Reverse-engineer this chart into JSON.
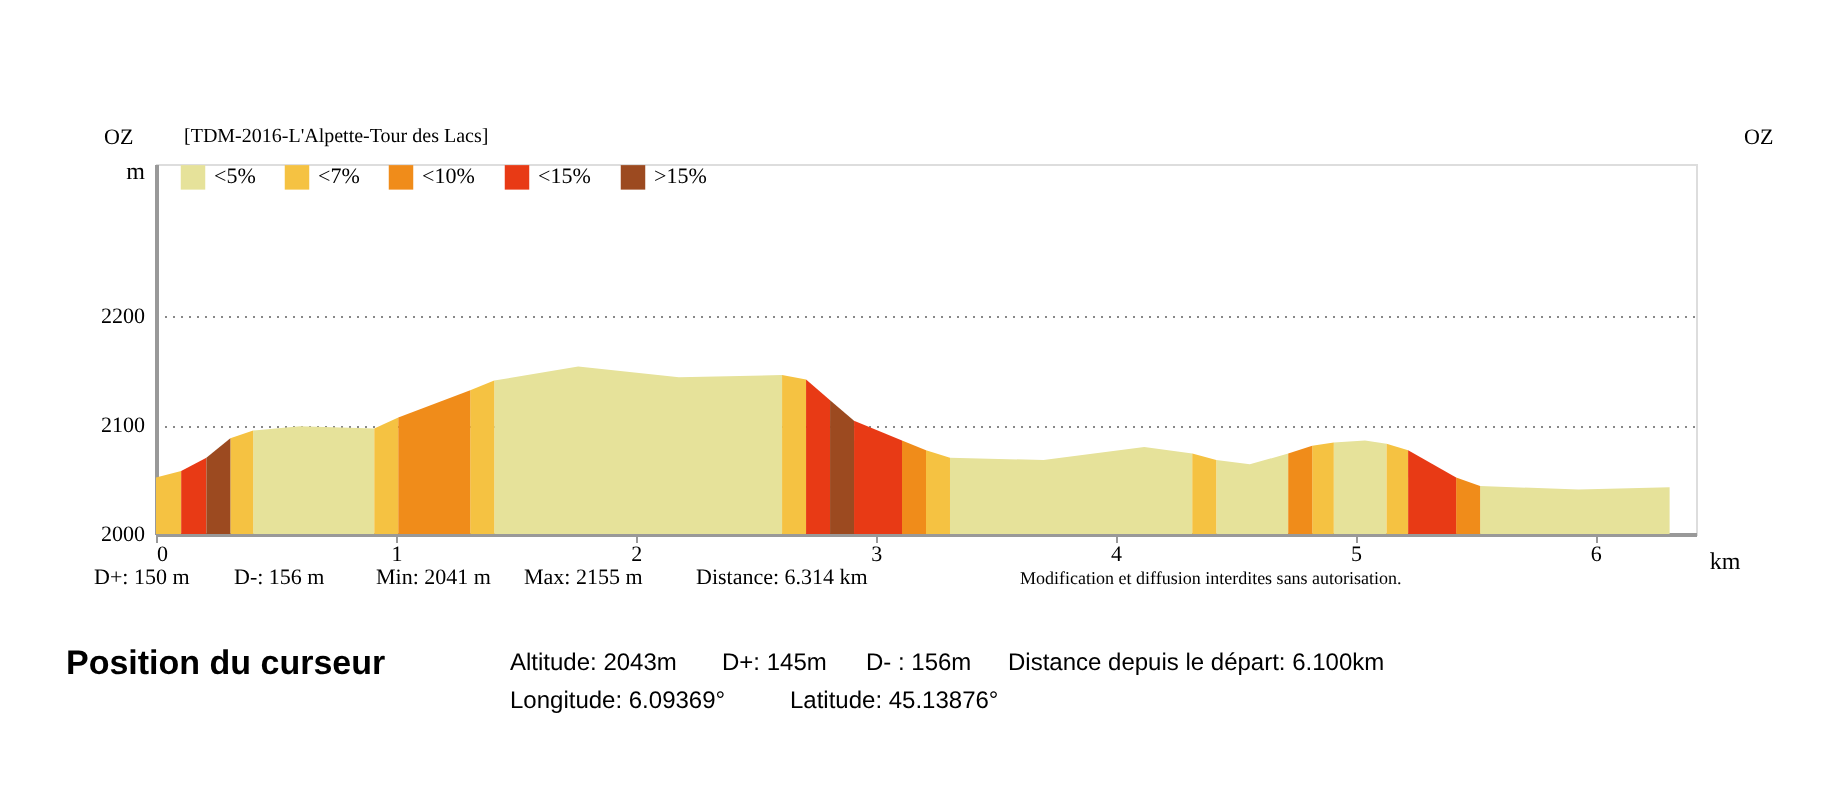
{
  "chart_data": {
    "type": "area",
    "title": "[TDM-2016-L'Alpette-Tour des Lacs]",
    "xlabel": "km",
    "ylabel": "m",
    "xlim": [
      0,
      6.42
    ],
    "ylim": [
      2000,
      2340
    ],
    "xticks": [
      0,
      1,
      2,
      3,
      4,
      5,
      6
    ],
    "yticks": [
      2000,
      2100,
      2200
    ],
    "grid": "y",
    "legend": "top left",
    "series": [
      {
        "name": "<5%",
        "color": "#e6e29a",
        "x": [
          0.405,
          0.6,
          0.91,
          1.2,
          1.41,
          1.76,
          2.18,
          2.61,
          2.65,
          3.31,
          3.7,
          4.12,
          4.32,
          4.37,
          4.42,
          4.56,
          4.72,
          4.8,
          4.91,
          5.04,
          5.13,
          5.2,
          5.52,
          5.93,
          6.31
        ],
        "values": [
          2095,
          2099,
          2097,
          null,
          2141,
          2154,
          2144,
          2146,
          null,
          2070,
          2068,
          2080,
          2074,
          null,
          2068,
          2064,
          2074,
          null,
          2084,
          2086,
          2083,
          null,
          2044,
          2041,
          2043
        ]
      },
      {
        "name": "<7%",
        "color": "#f5c242",
        "x": [
          0,
          0.105,
          0.2,
          0.31,
          0.405,
          0.6,
          0.91,
          1.01,
          1.2,
          1.31,
          1.41,
          2.0,
          2.61,
          2.71,
          3.0,
          3.21,
          3.31,
          3.8,
          4.32,
          4.42,
          4.6,
          4.82,
          4.91,
          5.0,
          5.13,
          5.22
        ],
        "values": [
          2052,
          2058,
          null,
          2088,
          2095,
          null,
          2097,
          2107,
          null,
          2132,
          2141,
          null,
          2146,
          2142,
          null,
          2077,
          2070,
          null,
          2074,
          2068,
          null,
          2081,
          2084,
          null,
          2083,
          2077
        ]
      },
      {
        "name": "<10%",
        "color": "#f08c1a",
        "x": [
          1.01,
          1.31,
          2.0,
          3.11,
          3.21,
          4.0,
          4.72,
          4.82,
          5.0,
          5.42,
          5.52
        ],
        "values": [
          2107,
          2132,
          null,
          2086,
          2077,
          null,
          2074,
          2081,
          null,
          2052,
          2044
        ]
      },
      {
        "name": "<15%",
        "color": "#e83a15",
        "x": [
          0.105,
          0.21,
          1.0,
          2.71,
          2.81,
          2.85,
          2.91,
          3.11,
          4.0,
          5.22,
          5.42
        ],
        "values": [
          2058,
          2070,
          null,
          2142,
          2123,
          null,
          2104,
          2086,
          null,
          2077,
          2052
        ]
      },
      {
        "name": ">15%",
        "color": "#9c4a20",
        "x": [
          0.21,
          0.31,
          1.5,
          2.81,
          2.91
        ],
        "values": [
          2070,
          2088,
          null,
          2123,
          2104
        ]
      }
    ],
    "annotations": [
      "OZ",
      "OZ",
      "D+: 150 m",
      "D-: 156 m",
      "Min: 2041 m",
      "Max: 2155 m",
      "Distance: 6.314 km",
      "Modification et diffusion interdites sans autorisation.",
      "Position du curseur",
      "Altitude: 2043m",
      "D+: 145m",
      "D- : 156m",
      "Distance depuis le départ: 6.100km",
      "Longitude: 6.09369°",
      "Latitude: 45.13876°"
    ]
  }
}
